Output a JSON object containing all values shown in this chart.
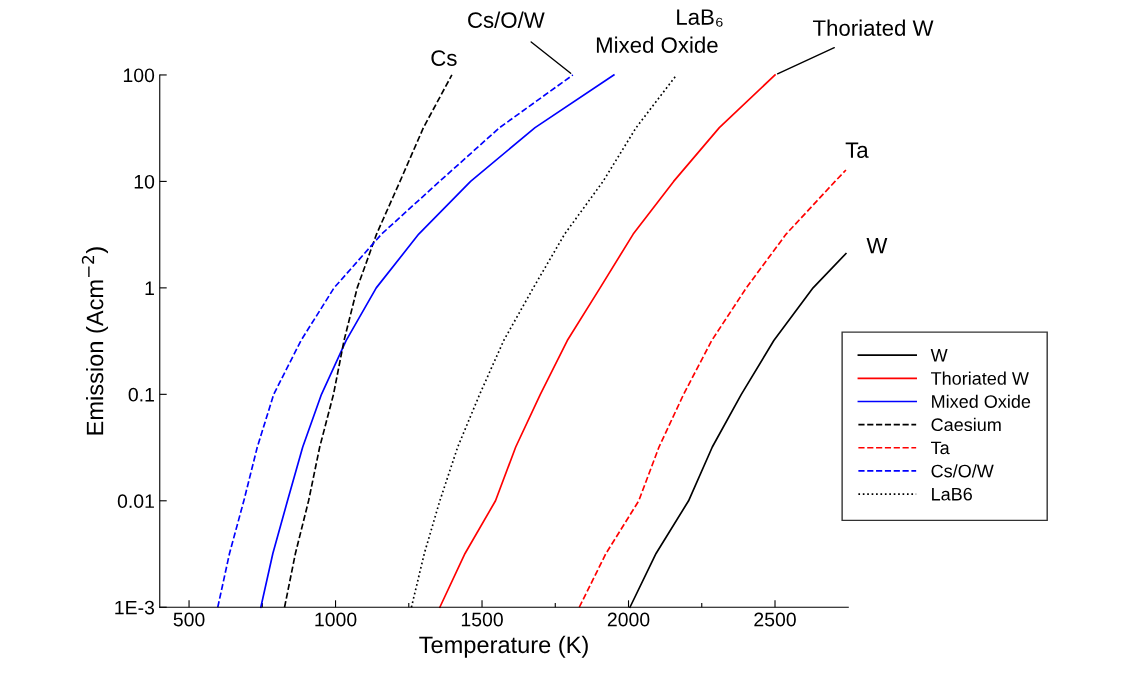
{
  "chart_data": {
    "type": "line",
    "xlabel": "Temperature (K)",
    "ylabel": "Emission (Acm$^{−2}$)",
    "log": "y",
    "xlim": [
      400,
      2750
    ],
    "xticks": [
      500,
      {
        "value": 750,
        "label": null
      },
      1000,
      {
        "value": 1250,
        "label": null
      },
      1500,
      {
        "value": 1750,
        "label": null
      },
      2000,
      {
        "value": 2250,
        "label": null
      },
      2500
    ],
    "ylim": [
      0.001,
      100
    ],
    "yticks": [
      {
        "value": 0.001,
        "label": "1E-3"
      },
      0.01,
      0.1,
      1,
      10,
      100
    ],
    "grid": false,
    "legend": "right",
    "marker": "none",
    "series": [
      {
        "name": "W",
        "color": "#000000",
        "line_style": "solid",
        "x": [
          2005,
          2094,
          2205,
          2286,
          2385,
          2496,
          2630,
          2742
        ],
        "values": [
          0.001,
          0.0032,
          0.01,
          0.032,
          0.1,
          0.32,
          1,
          2.1
        ]
      },
      {
        "name": "Thoriated W",
        "color": "#ff0000",
        "line_style": "solid",
        "x": [
          1356,
          1442,
          1546,
          1615,
          1699,
          1791,
          1903,
          2016,
          2154,
          2310,
          2500
        ],
        "values": [
          0.001,
          0.0032,
          0.01,
          0.032,
          0.1,
          0.32,
          1,
          3.2,
          10,
          32,
          100
        ]
      },
      {
        "name": "Mixed Oxide",
        "color": "#0000ff",
        "line_style": "solid",
        "x": [
          745,
          786,
          836,
          888,
          952,
          1036,
          1139,
          1284,
          1461,
          1681,
          1950
        ],
        "values": [
          0.001,
          0.0032,
          0.01,
          0.032,
          0.1,
          0.32,
          1,
          3.2,
          10,
          32,
          100
        ]
      },
      {
        "name": "Caesium",
        "color": "#000000",
        "line_style": "dashed",
        "x": [
          826,
          863,
          908,
          946,
          993,
          1029,
          1074,
          1140,
          1220,
          1300,
          1397
        ],
        "values": [
          0.001,
          0.0032,
          0.01,
          0.032,
          0.1,
          0.32,
          1,
          3.2,
          10,
          32,
          100
        ]
      },
      {
        "name": "Ta",
        "color": "#ff0000",
        "line_style": "dashed",
        "x": [
          1832,
          1923,
          2035,
          2104,
          2188,
          2284,
          2402,
          2538,
          2705,
          2742
        ],
        "values": [
          0.001,
          0.0032,
          0.01,
          0.032,
          0.1,
          0.32,
          1,
          3.2,
          10,
          12.8
        ]
      },
      {
        "name": "Cs/O/W",
        "color": "#0000ff",
        "line_style": "dashed",
        "x": [
          598,
          638,
          687,
          733,
          789,
          882,
          995,
          1157,
          1355,
          1560,
          1810
        ],
        "values": [
          0.001,
          0.0032,
          0.01,
          0.032,
          0.1,
          0.32,
          1,
          3.2,
          10,
          32,
          100
        ]
      },
      {
        "name": "LaB6",
        "color": "#000000",
        "line_style": "dotted",
        "x": [
          1259,
          1303,
          1356,
          1417,
          1492,
          1574,
          1675,
          1782,
          1913,
          2026,
          2164
        ],
        "values": [
          0.001,
          0.0032,
          0.01,
          0.032,
          0.1,
          0.32,
          1,
          3.2,
          10,
          32,
          100
        ]
      }
    ],
    "annotations": [
      {
        "text": "Cs",
        "x": 1397,
        "y": 100
      },
      {
        "text": "Cs/O/W",
        "x": 1810,
        "y": 100
      },
      {
        "text": "Mixed Oxide",
        "x": 1950,
        "y": 100
      },
      {
        "text": "LaB₆",
        "x": 2164,
        "y": 100
      },
      {
        "text": "Thoriated W",
        "x": 2500,
        "y": 100
      },
      {
        "text": "Ta",
        "x": 2742,
        "y": 12.8
      },
      {
        "text": "W",
        "x": 2742,
        "y": 2.1
      }
    ]
  }
}
